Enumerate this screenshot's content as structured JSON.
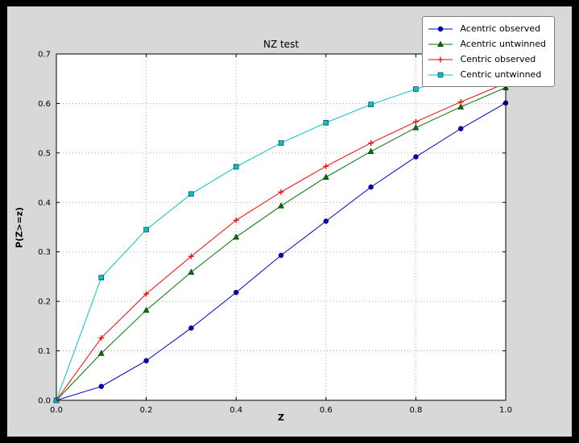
{
  "chart_data": {
    "type": "line",
    "title": "NZ test",
    "xlabel": "Z",
    "ylabel": "P(Z>=z)",
    "xlim": [
      0.0,
      1.0
    ],
    "ylim": [
      0.0,
      0.7
    ],
    "xticks": [
      0.0,
      0.2,
      0.4,
      0.6,
      0.8,
      1.0
    ],
    "xtick_labels": [
      "0.0",
      "0.2",
      "0.4",
      "0.6",
      "0.8",
      "1.0"
    ],
    "yticks": [
      0.0,
      0.1,
      0.2,
      0.3,
      0.4,
      0.5,
      0.6,
      0.7
    ],
    "ytick_labels": [
      "0.0",
      "0.1",
      "0.2",
      "0.3",
      "0.4",
      "0.5",
      "0.6",
      "0.7"
    ],
    "grid": true,
    "legend_position": "upper right",
    "x": [
      0.0,
      0.1,
      0.2,
      0.3,
      0.4,
      0.5,
      0.6,
      0.7,
      0.8,
      0.9,
      1.0
    ],
    "series": [
      {
        "name": "Acentric observed",
        "color": "#0000cc",
        "marker": "circle",
        "values": [
          0.0,
          0.028,
          0.08,
          0.146,
          0.218,
          0.293,
          0.362,
          0.431,
          0.492,
          0.549,
          0.601
        ]
      },
      {
        "name": "Acentric untwinned",
        "color": "#007700",
        "marker": "triangle",
        "values": [
          0.0,
          0.095,
          0.182,
          0.259,
          0.33,
          0.393,
          0.451,
          0.503,
          0.551,
          0.593,
          0.632
        ]
      },
      {
        "name": "Centric observed",
        "color": "#ff0000",
        "marker": "plus",
        "values": [
          0.0,
          0.126,
          0.215,
          0.291,
          0.364,
          0.421,
          0.473,
          0.52,
          0.563,
          0.603,
          0.641
        ]
      },
      {
        "name": "Centric untwinned",
        "color": "#00c3c9",
        "marker": "square",
        "values": [
          0.0,
          0.248,
          0.345,
          0.417,
          0.472,
          0.52,
          0.561,
          0.598,
          0.629,
          0.657,
          0.683
        ]
      }
    ],
    "colors": {
      "figure_bg": "#d8d8d8",
      "axes_bg": "#ffffff",
      "grid": "#9a9a9a",
      "axis": "#000000"
    }
  }
}
